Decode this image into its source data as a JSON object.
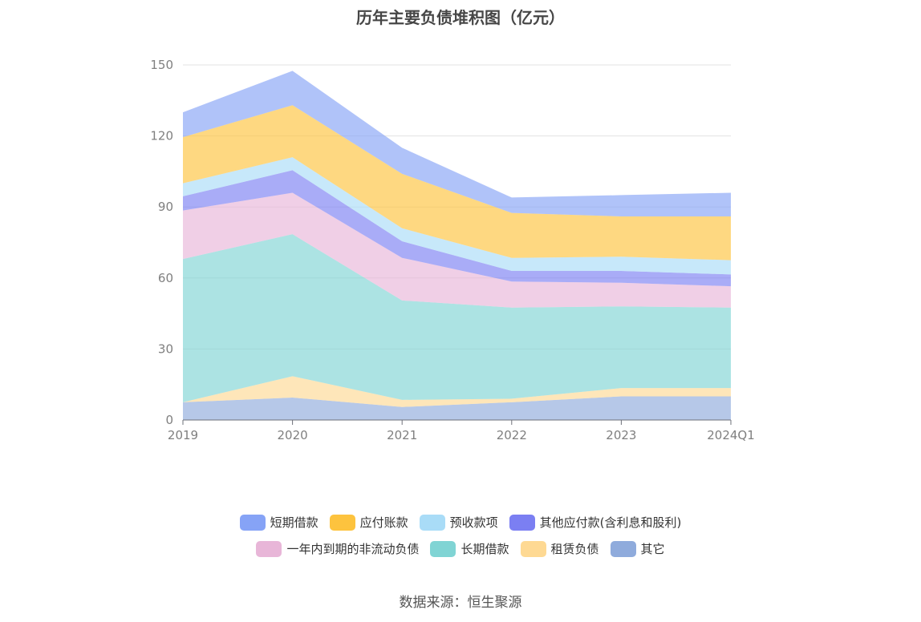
{
  "chart_data": {
    "type": "area",
    "stacked": true,
    "title": "历年主要负债堆积图（亿元）",
    "categories": [
      "2019",
      "2020",
      "2021",
      "2022",
      "2023",
      "2024Q1"
    ],
    "ylim": [
      0,
      150
    ],
    "yticks": [
      "0",
      "30",
      "60",
      "90",
      "120",
      "150"
    ],
    "grid": true,
    "legend_position": "bottom",
    "series": [
      {
        "name": "其它",
        "color": "#8fabdc",
        "values": [
          7.5,
          9.5,
          5.5,
          7.5,
          10,
          10
        ]
      },
      {
        "name": "租赁负债",
        "color": "#fed993",
        "values": [
          0,
          9,
          3,
          1.5,
          3.5,
          3.5
        ]
      },
      {
        "name": "长期借款",
        "color": "#80d4d4",
        "values": [
          60.5,
          60,
          42,
          38.5,
          34.5,
          34
        ]
      },
      {
        "name": "一年内到期的非流动负债",
        "color": "#e8b6d8",
        "values": [
          20.5,
          17.5,
          18,
          11,
          10,
          9
        ]
      },
      {
        "name": "其他应付款(含利息和股利)",
        "color": "#7b7ff2",
        "values": [
          6,
          9.5,
          7,
          4.5,
          5,
          5
        ]
      },
      {
        "name": "预收款项",
        "color": "#a9dcf7",
        "values": [
          5.5,
          5.5,
          5.5,
          5.5,
          6,
          6
        ]
      },
      {
        "name": "应付账款",
        "color": "#fdc33e",
        "values": [
          19.5,
          22,
          23,
          19,
          17,
          18.5
        ]
      },
      {
        "name": "短期借款",
        "color": "#86a3f6",
        "values": [
          10.5,
          14.5,
          11,
          6.5,
          9,
          10
        ]
      }
    ]
  },
  "legend_rows": [
    [
      {
        "label": "短期借款",
        "color": "#86a3f6"
      },
      {
        "label": "应付账款",
        "color": "#fdc33e"
      },
      {
        "label": "预收款项",
        "color": "#a9dcf7"
      },
      {
        "label": "其他应付款(含利息和股利)",
        "color": "#7b7ff2"
      }
    ],
    [
      {
        "label": "一年内到期的非流动负债",
        "color": "#e8b6d8"
      },
      {
        "label": "长期借款",
        "color": "#80d4d4"
      },
      {
        "label": "租赁负债",
        "color": "#fed993"
      },
      {
        "label": "其它",
        "color": "#8fabdc"
      }
    ]
  ],
  "source": "数据来源：恒生聚源"
}
